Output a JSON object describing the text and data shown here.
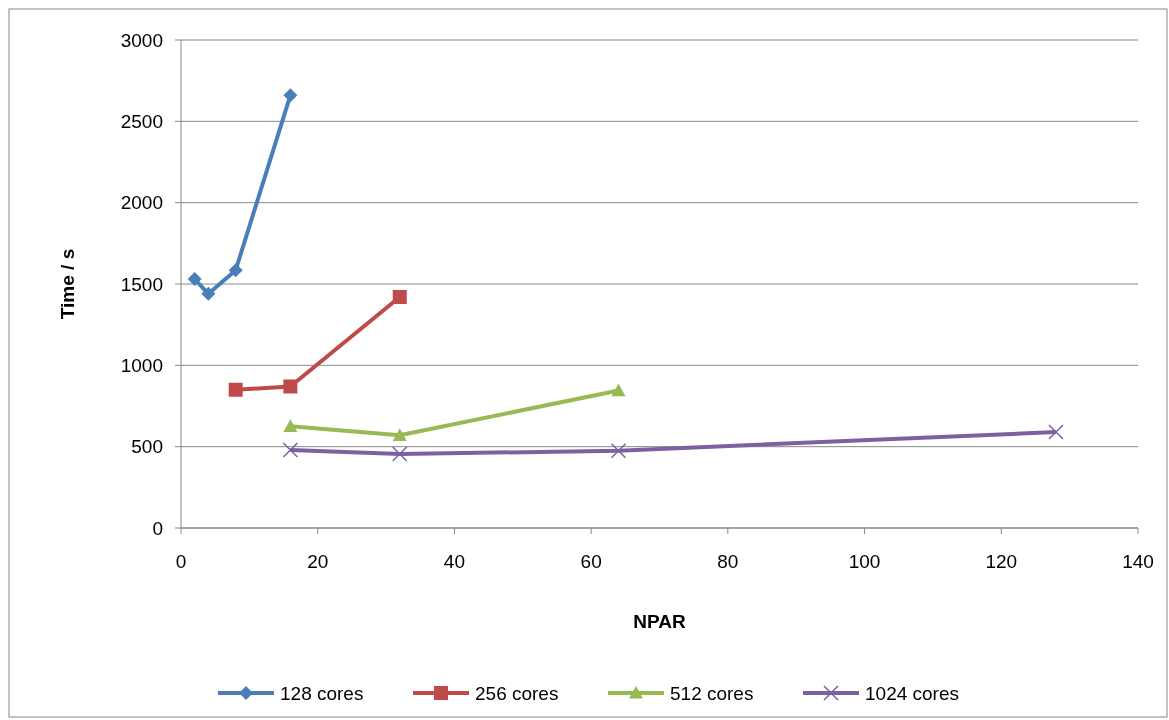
{
  "chart_data": {
    "type": "line",
    "xlabel": "NPAR",
    "ylabel": "Time / s",
    "xlim": [
      0,
      140
    ],
    "xticks": [
      0,
      20,
      40,
      60,
      80,
      100,
      120,
      140
    ],
    "ylim": [
      0,
      3000
    ],
    "yticks": [
      0,
      500,
      1000,
      1500,
      2000,
      2500,
      3000
    ],
    "grid": "y",
    "legend": "bottom",
    "line_style": "solid",
    "series": [
      {
        "name": "128 cores",
        "color": "#4a7ebb",
        "marker": "diamond",
        "x": [
          2,
          4,
          8,
          16
        ],
        "values": [
          1530,
          1440,
          1585,
          2660
        ]
      },
      {
        "name": "256 cores",
        "color": "#be4b48",
        "marker": "square",
        "x": [
          8,
          16,
          32
        ],
        "values": [
          850,
          870,
          1420
        ]
      },
      {
        "name": "512 cores",
        "color": "#98b954",
        "marker": "triangle",
        "x": [
          16,
          32,
          64
        ],
        "values": [
          625,
          570,
          845
        ]
      },
      {
        "name": "1024 cores",
        "color": "#7d60a0",
        "marker": "cross",
        "x": [
          16,
          32,
          64,
          128
        ],
        "values": [
          480,
          455,
          475,
          590
        ]
      }
    ]
  }
}
